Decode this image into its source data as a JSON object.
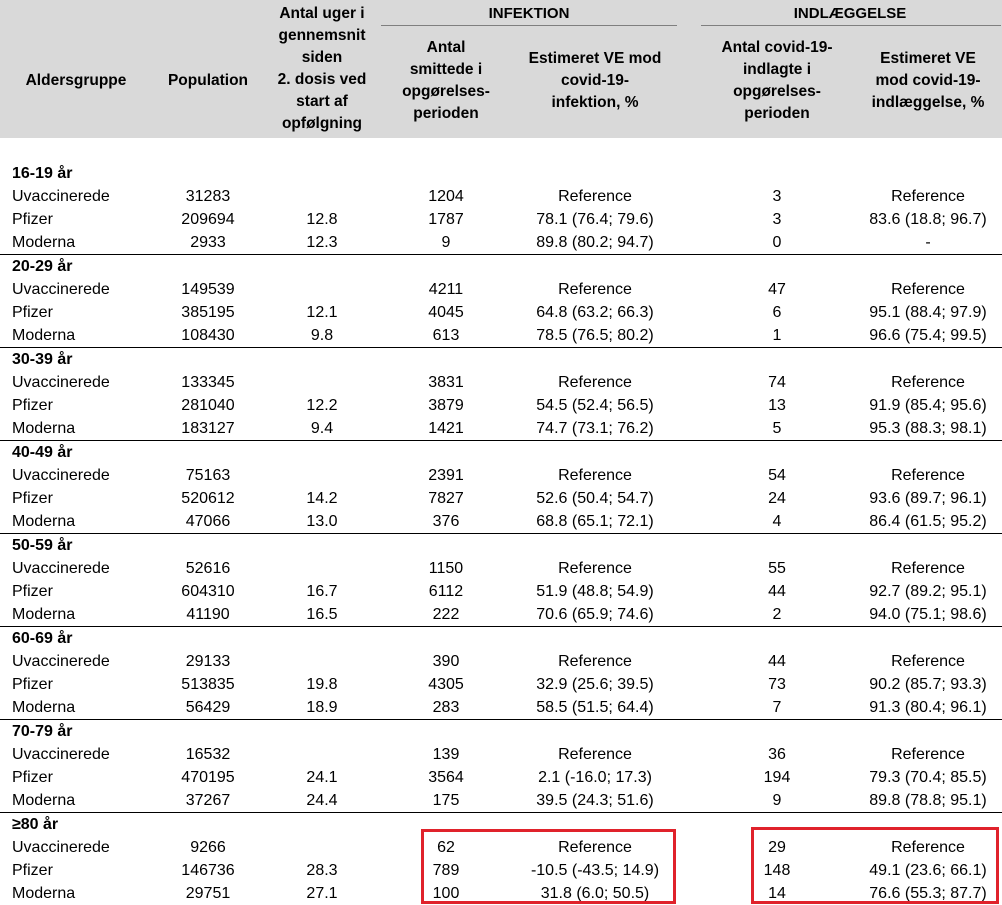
{
  "header": {
    "col_age": "Aldersgruppe",
    "col_population": "Population",
    "col_weeks": [
      "Antal uger i",
      "gennemsnit",
      "siden",
      "2. dosis ved",
      "start af",
      "opfølgning"
    ],
    "group_infection": "INFEKTION",
    "group_hospital": "INDLÆGGELSE",
    "col_inf_count": [
      "Antal",
      "smittede i",
      "opgørelses-",
      "perioden"
    ],
    "col_inf_ve": [
      "Estimeret VE mod",
      "covid-19-",
      "infektion, %"
    ],
    "col_hosp_count": [
      "Antal covid-19-",
      "indlagte i",
      "opgørelses-",
      "perioden"
    ],
    "col_hosp_ve": [
      "Estimeret VE",
      "mod covid-19-",
      "indlæggelse, %"
    ]
  },
  "groups": [
    {
      "label": "16-19 år",
      "rows": [
        {
          "name": "Uvaccinerede",
          "population": "31283",
          "weeks": "",
          "inf_n": "1204",
          "inf_ve": "Reference",
          "hosp_n": "3",
          "hosp_ve": "Reference"
        },
        {
          "name": "Pfizer",
          "population": "209694",
          "weeks": "12.8",
          "inf_n": "1787",
          "inf_ve": "78.1 (76.4; 79.6)",
          "hosp_n": "3",
          "hosp_ve": "83.6 (18.8; 96.7)"
        },
        {
          "name": "Moderna",
          "population": "2933",
          "weeks": "12.3",
          "inf_n": "9",
          "inf_ve": "89.8 (80.2; 94.7)",
          "hosp_n": "0",
          "hosp_ve": "-"
        }
      ]
    },
    {
      "label": "20-29 år",
      "rows": [
        {
          "name": "Uvaccinerede",
          "population": "149539",
          "weeks": "",
          "inf_n": "4211",
          "inf_ve": "Reference",
          "hosp_n": "47",
          "hosp_ve": "Reference"
        },
        {
          "name": "Pfizer",
          "population": "385195",
          "weeks": "12.1",
          "inf_n": "4045",
          "inf_ve": "64.8 (63.2; 66.3)",
          "hosp_n": "6",
          "hosp_ve": "95.1 (88.4; 97.9)"
        },
        {
          "name": "Moderna",
          "population": "108430",
          "weeks": "9.8",
          "inf_n": "613",
          "inf_ve": "78.5 (76.5; 80.2)",
          "hosp_n": "1",
          "hosp_ve": "96.6 (75.4; 99.5)"
        }
      ]
    },
    {
      "label": "30-39 år",
      "rows": [
        {
          "name": "Uvaccinerede",
          "population": "133345",
          "weeks": "",
          "inf_n": "3831",
          "inf_ve": "Reference",
          "hosp_n": "74",
          "hosp_ve": "Reference"
        },
        {
          "name": "Pfizer",
          "population": "281040",
          "weeks": "12.2",
          "inf_n": "3879",
          "inf_ve": "54.5 (52.4; 56.5)",
          "hosp_n": "13",
          "hosp_ve": "91.9 (85.4; 95.6)"
        },
        {
          "name": "Moderna",
          "population": "183127",
          "weeks": "9.4",
          "inf_n": "1421",
          "inf_ve": "74.7 (73.1; 76.2)",
          "hosp_n": "5",
          "hosp_ve": "95.3 (88.3; 98.1)"
        }
      ]
    },
    {
      "label": "40-49 år",
      "rows": [
        {
          "name": "Uvaccinerede",
          "population": "75163",
          "weeks": "",
          "inf_n": "2391",
          "inf_ve": "Reference",
          "hosp_n": "54",
          "hosp_ve": "Reference"
        },
        {
          "name": "Pfizer",
          "population": "520612",
          "weeks": "14.2",
          "inf_n": "7827",
          "inf_ve": "52.6 (50.4; 54.7)",
          "hosp_n": "24",
          "hosp_ve": "93.6 (89.7; 96.1)"
        },
        {
          "name": "Moderna",
          "population": "47066",
          "weeks": "13.0",
          "inf_n": "376",
          "inf_ve": "68.8 (65.1; 72.1)",
          "hosp_n": "4",
          "hosp_ve": "86.4 (61.5; 95.2)"
        }
      ]
    },
    {
      "label": "50-59 år",
      "rows": [
        {
          "name": "Uvaccinerede",
          "population": "52616",
          "weeks": "",
          "inf_n": "1150",
          "inf_ve": "Reference",
          "hosp_n": "55",
          "hosp_ve": "Reference"
        },
        {
          "name": "Pfizer",
          "population": "604310",
          "weeks": "16.7",
          "inf_n": "6112",
          "inf_ve": "51.9 (48.8; 54.9)",
          "hosp_n": "44",
          "hosp_ve": "92.7 (89.2; 95.1)"
        },
        {
          "name": "Moderna",
          "population": "41190",
          "weeks": "16.5",
          "inf_n": "222",
          "inf_ve": "70.6 (65.9; 74.6)",
          "hosp_n": "2",
          "hosp_ve": "94.0 (75.1; 98.6)"
        }
      ]
    },
    {
      "label": "60-69 år",
      "rows": [
        {
          "name": "Uvaccinerede",
          "population": "29133",
          "weeks": "",
          "inf_n": "390",
          "inf_ve": "Reference",
          "hosp_n": "44",
          "hosp_ve": "Reference"
        },
        {
          "name": "Pfizer",
          "population": "513835",
          "weeks": "19.8",
          "inf_n": "4305",
          "inf_ve": "32.9 (25.6; 39.5)",
          "hosp_n": "73",
          "hosp_ve": "90.2 (85.7; 93.3)"
        },
        {
          "name": "Moderna",
          "population": "56429",
          "weeks": "18.9",
          "inf_n": "283",
          "inf_ve": "58.5 (51.5; 64.4)",
          "hosp_n": "7",
          "hosp_ve": "91.3 (80.4; 96.1)"
        }
      ]
    },
    {
      "label": "70-79 år",
      "rows": [
        {
          "name": "Uvaccinerede",
          "population": "16532",
          "weeks": "",
          "inf_n": "139",
          "inf_ve": "Reference",
          "hosp_n": "36",
          "hosp_ve": "Reference"
        },
        {
          "name": "Pfizer",
          "population": "470195",
          "weeks": "24.1",
          "inf_n": "3564",
          "inf_ve": "2.1 (-16.0; 17.3)",
          "hosp_n": "194",
          "hosp_ve": "79.3 (70.4; 85.5)"
        },
        {
          "name": "Moderna",
          "population": "37267",
          "weeks": "24.4",
          "inf_n": "175",
          "inf_ve": "39.5 (24.3; 51.6)",
          "hosp_n": "9",
          "hosp_ve": "89.8 (78.8; 95.1)"
        }
      ]
    },
    {
      "label": "≥80 år",
      "rows": [
        {
          "name": "Uvaccinerede",
          "population": "9266",
          "weeks": "",
          "inf_n": "62",
          "inf_ve": "Reference",
          "hosp_n": "29",
          "hosp_ve": "Reference"
        },
        {
          "name": "Pfizer",
          "population": "146736",
          "weeks": "28.3",
          "inf_n": "789",
          "inf_ve": "-10.5 (-43.5; 14.9)",
          "hosp_n": "148",
          "hosp_ve": "49.1 (23.6; 66.1)"
        },
        {
          "name": "Moderna",
          "population": "29751",
          "weeks": "27.1",
          "inf_n": "100",
          "inf_ve": "31.8 (6.0; 50.5)",
          "hosp_n": "14",
          "hosp_ve": "76.6 (55.3; 87.7)"
        }
      ]
    }
  ],
  "highlight_color": "#e0222b"
}
